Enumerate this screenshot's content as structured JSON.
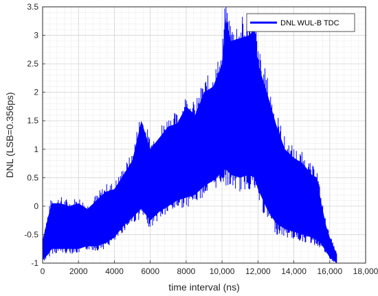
{
  "chart_data": {
    "type": "area",
    "title": "",
    "xlabel": "time interval (ns)",
    "ylabel": "DNL (LSB=0.356ps)",
    "xlim": [
      0,
      18000
    ],
    "ylim": [
      -1,
      3.5
    ],
    "xticks": [
      0,
      2000,
      4000,
      6000,
      8000,
      10000,
      12000,
      14000,
      16000,
      18000
    ],
    "xtick_labels": [
      "0",
      "2000",
      "4000",
      "6000",
      "8000",
      "10,000",
      "12,000",
      "14,000",
      "16,000",
      "18,000"
    ],
    "yticks": [
      -1,
      -0.5,
      0,
      0.5,
      1,
      1.5,
      2,
      2.5,
      3,
      3.5
    ],
    "ytick_labels": [
      "-1",
      "-0.5",
      "0",
      "0.5",
      "1",
      "1.5",
      "2",
      "2.5",
      "3",
      "3.5"
    ],
    "grid": true,
    "minor_grid": true,
    "legend_position": "top-right",
    "series": [
      {
        "name": "DNL WUL-B TDC",
        "color": "#0000ff",
        "x": [
          0,
          300,
          500,
          1000,
          1500,
          2000,
          2500,
          3000,
          3500,
          4000,
          4500,
          5000,
          5500,
          6000,
          6500,
          7000,
          7500,
          8000,
          8500,
          9000,
          9500,
          10000,
          10200,
          10500,
          11000,
          11500,
          11800,
          12000,
          12500,
          13000,
          13500,
          14000,
          14500,
          15000,
          15300,
          15500,
          15800,
          16000,
          16200,
          16400
        ],
        "upper": [
          -0.6,
          -0.2,
          0.05,
          0.05,
          0.0,
          0.05,
          -0.05,
          0.1,
          0.25,
          0.3,
          0.55,
          0.8,
          1.5,
          1.0,
          1.2,
          1.4,
          1.45,
          1.75,
          1.6,
          2.0,
          2.1,
          2.5,
          3.3,
          2.9,
          2.95,
          3.0,
          3.1,
          2.5,
          2.0,
          1.45,
          1.0,
          0.85,
          0.75,
          0.55,
          0.5,
          0.1,
          -0.35,
          -0.55,
          -0.7,
          -0.85
        ],
        "lower": [
          -0.95,
          -0.85,
          -0.75,
          -0.75,
          -0.75,
          -0.75,
          -0.7,
          -0.7,
          -0.65,
          -0.55,
          -0.35,
          -0.2,
          -0.05,
          -0.25,
          -0.1,
          0.0,
          0.1,
          0.15,
          0.2,
          0.35,
          0.45,
          0.6,
          0.65,
          0.55,
          0.5,
          0.55,
          0.5,
          0.3,
          -0.05,
          -0.3,
          -0.4,
          -0.45,
          -0.5,
          -0.55,
          -0.6,
          -0.65,
          -0.8,
          -0.9,
          -0.95,
          -1.0
        ]
      }
    ]
  }
}
